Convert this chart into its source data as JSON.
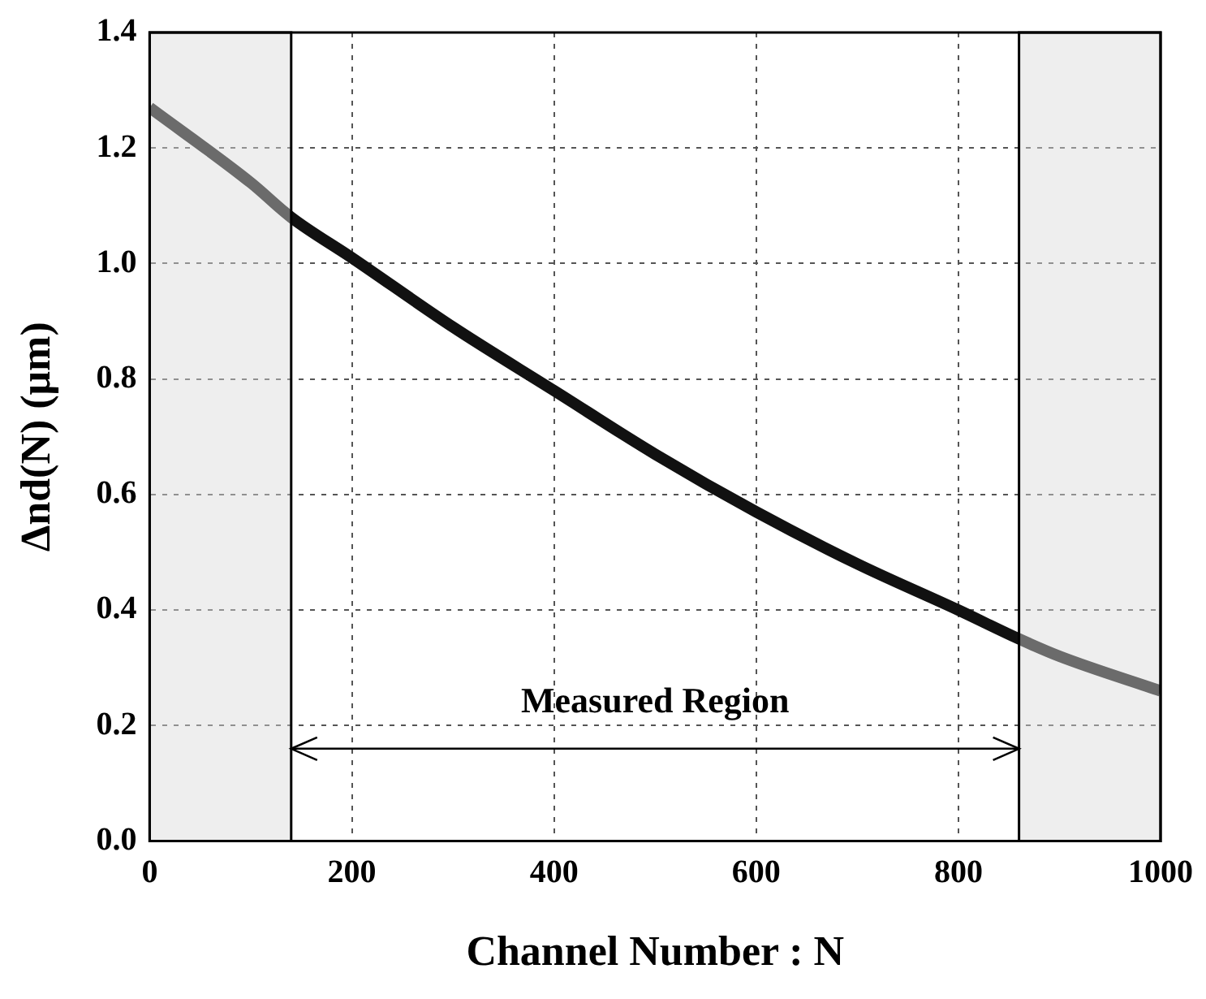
{
  "chart_data": {
    "type": "line",
    "xlabel": "Channel Number : N",
    "ylabel": "Δnd(N) (μm)",
    "x": [
      0,
      100,
      140,
      200,
      300,
      400,
      500,
      600,
      700,
      800,
      860,
      900,
      1000
    ],
    "series": [
      {
        "color": "#111111",
        "values": [
          1.27,
          1.14,
          1.08,
          1.01,
          0.89,
          0.78,
          0.67,
          0.57,
          0.48,
          0.4,
          0.35,
          0.32,
          0.26
        ]
      },
      {
        "type": "line",
        "color": "#000000",
        "x": [
          140,
          860
        ],
        "values": [
          0.16,
          0.16
        ]
      }
    ],
    "xlim": [
      0,
      1000
    ],
    "xticks": [
      0,
      200,
      400,
      600,
      800,
      1000
    ],
    "ylim": [
      0,
      1.4
    ],
    "yticks": [
      {
        "value": 0,
        "label": "0.0"
      },
      0.2,
      0.4,
      0.6,
      0.8,
      {
        "value": 1,
        "label": "1.0"
      },
      1.2,
      1.4
    ],
    "bands": [
      {
        "axis": "x",
        "from": 0,
        "to": 140,
        "color": "#d9d9d9"
      },
      {
        "axis": "x",
        "from": 860,
        "to": 1000,
        "color": "#d9d9d9"
      }
    ],
    "annotations": [
      "Measured Region"
    ],
    "grid": true,
    "legend": false,
    "marker": "none",
    "line_style": "solid"
  }
}
